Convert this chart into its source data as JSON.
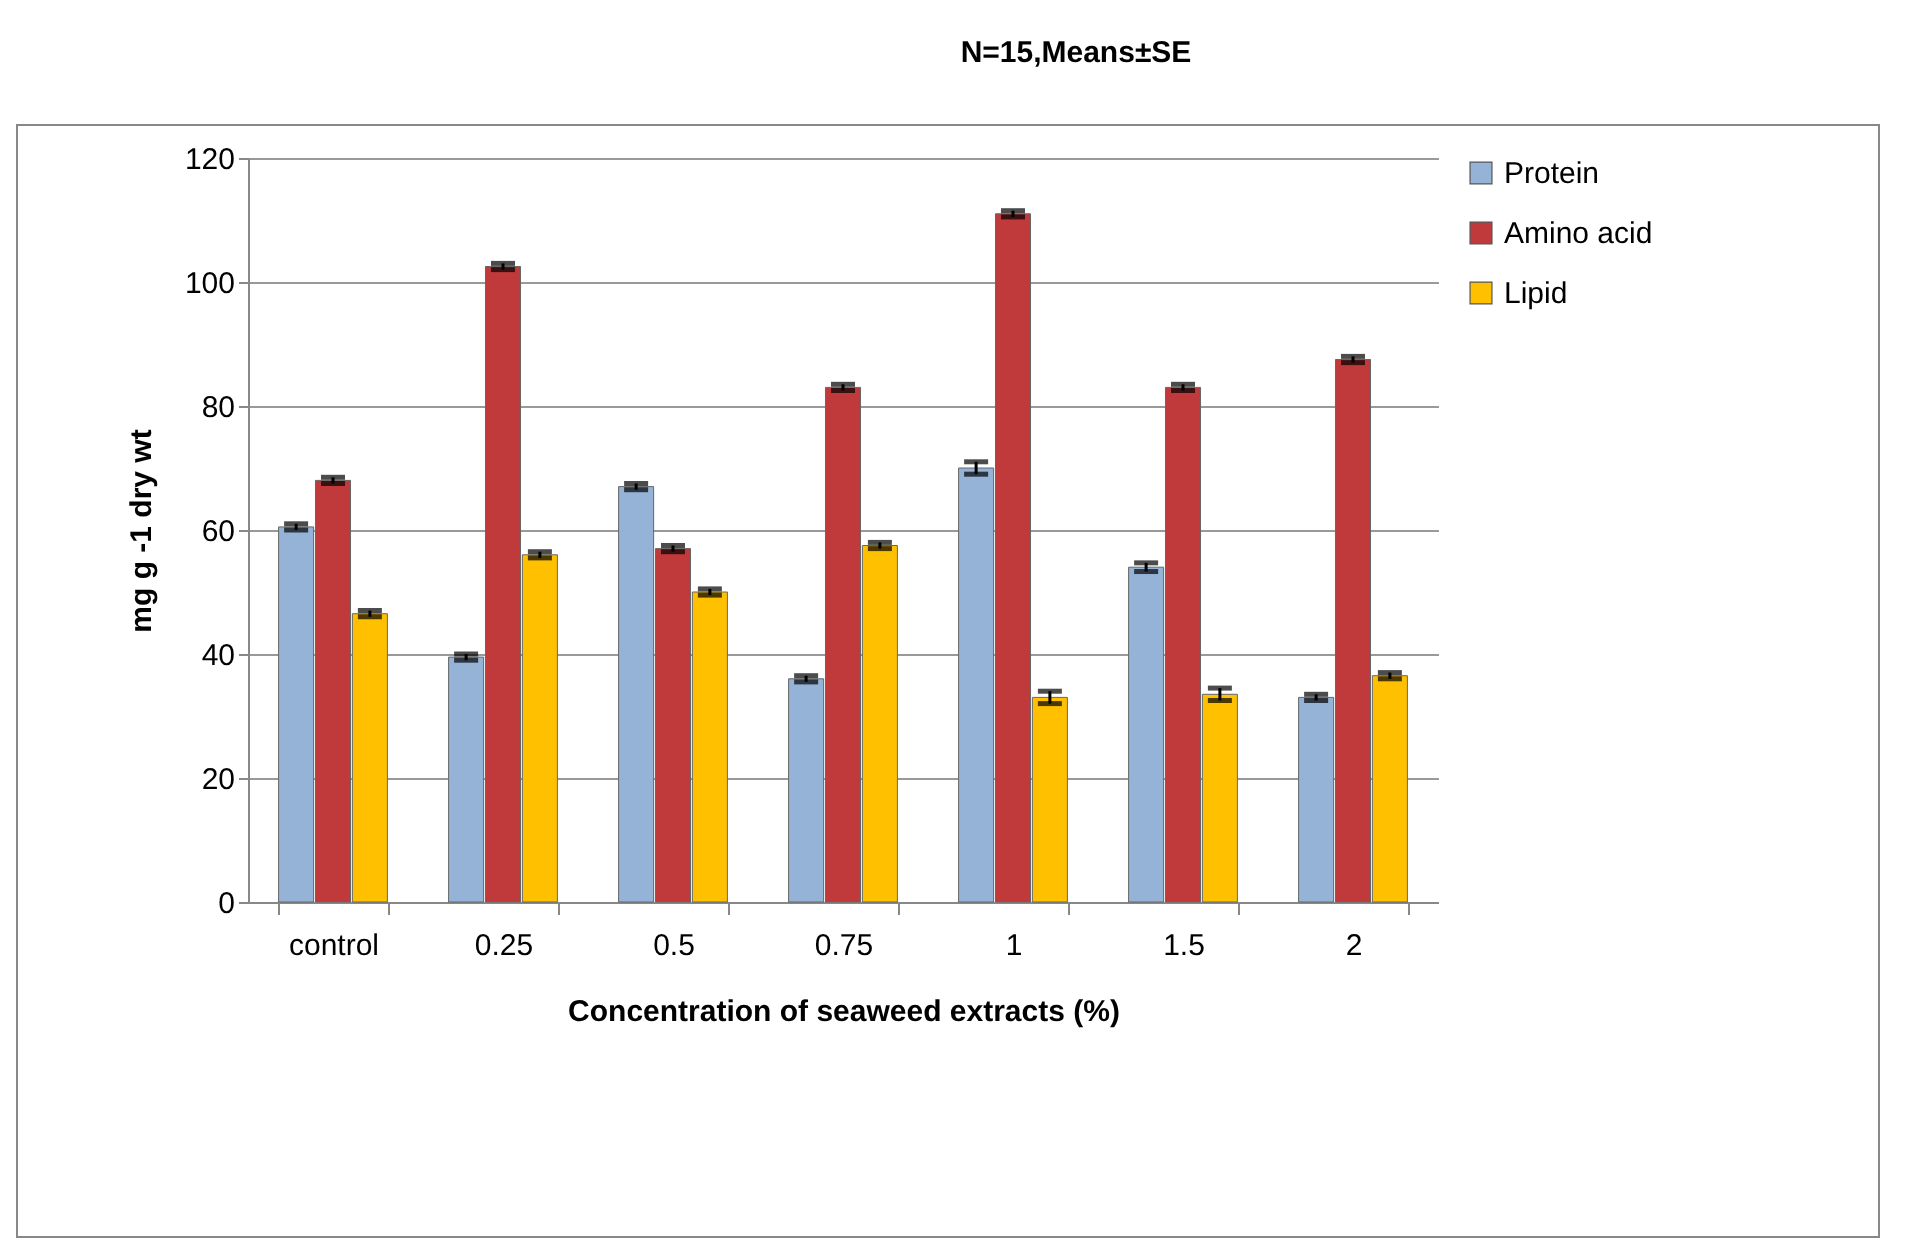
{
  "chart_data": {
    "type": "bar",
    "title": "N=15,Means±SE",
    "xlabel": "Concentration of seaweed extracts (%)",
    "ylabel": "mg g -1 dry wt",
    "categories": [
      "control",
      "0.25",
      "0.5",
      "0.75",
      "1",
      "1.5",
      "2"
    ],
    "series": [
      {
        "name": "Protein",
        "color": "#95b3d7",
        "values": [
          60.5,
          39.5,
          67,
          36,
          70,
          54,
          33
        ],
        "errors": [
          0.5,
          0.5,
          0.5,
          0.5,
          1,
          0.7,
          0.5
        ]
      },
      {
        "name": "Amino acid",
        "color": "#c0393b",
        "values": [
          68,
          102.5,
          57,
          83,
          111,
          83,
          87.5
        ],
        "errors": [
          0.5,
          0.5,
          0.5,
          0.5,
          0.5,
          0.5,
          0.5
        ]
      },
      {
        "name": "Lipid",
        "color": "#ffc000",
        "values": [
          46.5,
          56,
          50,
          57.5,
          33,
          33.5,
          36.5
        ],
        "errors": [
          0.5,
          0.5,
          0.5,
          0.5,
          1,
          1,
          0.5
        ]
      }
    ],
    "ylim": [
      0,
      120
    ],
    "yticks": [
      0,
      20,
      40,
      60,
      80,
      100,
      120
    ],
    "grid": "y",
    "legend": "right"
  }
}
